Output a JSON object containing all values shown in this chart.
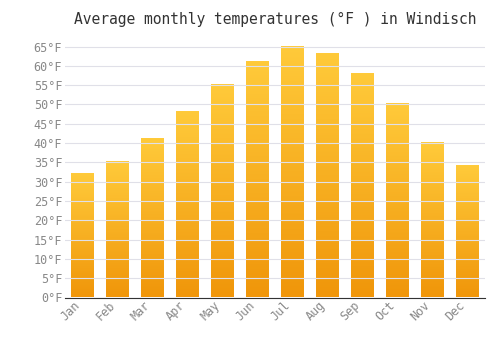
{
  "title": "Average monthly temperatures (°F ) in Windisch",
  "months": [
    "Jan",
    "Feb",
    "Mar",
    "Apr",
    "May",
    "Jun",
    "Jul",
    "Aug",
    "Sep",
    "Oct",
    "Nov",
    "Dec"
  ],
  "values": [
    32,
    35,
    41,
    48,
    55,
    61,
    65,
    63,
    58,
    50,
    40,
    34
  ],
  "bar_color_top": "#FFCA3A",
  "bar_color_bottom": "#F0960A",
  "background_color": "#FFFFFF",
  "grid_color": "#E0E0E8",
  "ylim": [
    0,
    68
  ],
  "yticks": [
    0,
    5,
    10,
    15,
    20,
    25,
    30,
    35,
    40,
    45,
    50,
    55,
    60,
    65
  ],
  "title_fontsize": 10.5,
  "tick_fontsize": 8.5,
  "axis_label_color": "#888888",
  "title_color": "#333333"
}
